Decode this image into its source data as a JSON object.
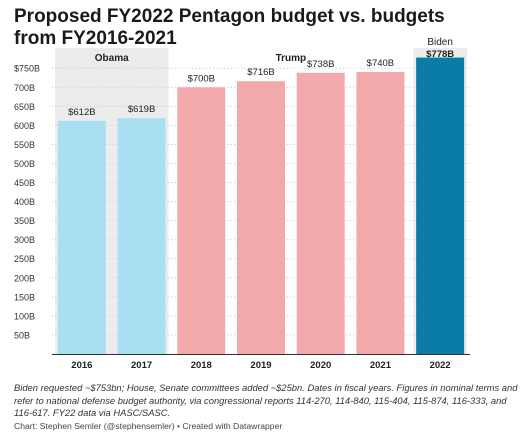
{
  "title_lines": [
    "Proposed FY2022 Pentagon budget vs. budgets",
    "from FY2016-2021"
  ],
  "chart_data": {
    "type": "bar",
    "categories": [
      "2016",
      "2017",
      "2018",
      "2019",
      "2020",
      "2021",
      "2022"
    ],
    "values": [
      612,
      619,
      700,
      716,
      738,
      740,
      778
    ],
    "value_labels": [
      "$612B",
      "$619B",
      "$700B",
      "$716B",
      "$738B",
      "$740B",
      "$778B"
    ],
    "groups": [
      {
        "name": "Obama",
        "categories": [
          "2016",
          "2017"
        ],
        "color": "#a8dff2"
      },
      {
        "name": "Trump",
        "categories": [
          "2018",
          "2019",
          "2020",
          "2021"
        ],
        "color": "#f2a9ab"
      },
      {
        "name": "Biden",
        "categories": [
          "2022"
        ],
        "color": "#0a7ca6"
      }
    ],
    "highlight_bg": "#ececec",
    "yticks": [
      0,
      50,
      100,
      150,
      200,
      250,
      300,
      350,
      400,
      450,
      500,
      550,
      600,
      650,
      700,
      750
    ],
    "ytick_labels": [
      "",
      "50B",
      "100B",
      "150B",
      "200B",
      "250B",
      "300B",
      "350B",
      "400B",
      "450B",
      "500B",
      "550B",
      "600B",
      "650B",
      "700B",
      "$750B"
    ],
    "ylim": [
      0,
      790
    ],
    "grid": true
  },
  "footnote": "Biden requested ~$753bn; House, Senate committees added ~$25bn. Dates in fiscal years. Figures in nominal terms and refer to national defense budget authority, via congressional reports 114-270, 114-840, 115-404, 115-874, 116-333, and 116-617. FY22 data via HASC/SASC.",
  "credit": "Chart: Stephen Semler (@stephensemler) • Created with Datawrapper"
}
